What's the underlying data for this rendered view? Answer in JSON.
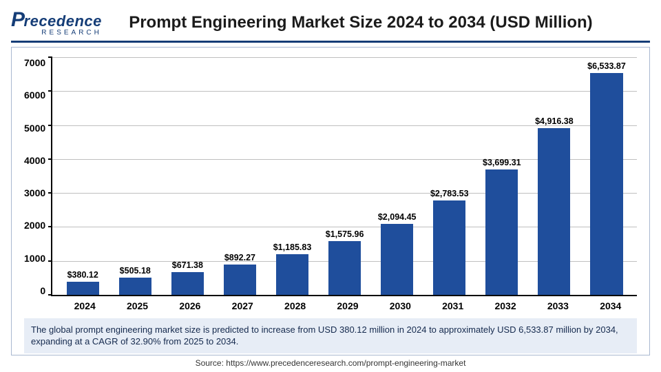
{
  "logo": {
    "text_left": "P",
    "text_mid": "recedence",
    "sub": "RESEARCH",
    "color": "#153d77"
  },
  "title": "Prompt Engineering Market Size 2024 to 2034 (USD Million)",
  "chart": {
    "type": "bar",
    "categories": [
      "2024",
      "2025",
      "2026",
      "2027",
      "2028",
      "2029",
      "2030",
      "2031",
      "2032",
      "2033",
      "2034"
    ],
    "values": [
      380.12,
      505.18,
      671.38,
      892.27,
      1185.83,
      1575.96,
      2094.45,
      2783.53,
      3699.31,
      4916.38,
      6533.87
    ],
    "value_labels": [
      "$380.12",
      "$505.18",
      "$671.38",
      "$892.27",
      "$1,185.83",
      "$1,575.96",
      "$2,094.45",
      "$2,783.53",
      "$3,699.31",
      "$4,916.38",
      "$6,533.87"
    ],
    "bar_color": "#1f4e9c",
    "ylim": [
      0,
      7000
    ],
    "ytick_step": 1000,
    "yticks": [
      "7000",
      "6000",
      "5000",
      "4000",
      "3000",
      "2000",
      "1000",
      "0"
    ],
    "grid_color": "#bfbfbf",
    "border_color": "#a8b8d0",
    "title_color": "#1b1b1b",
    "axis_fontsize": 14,
    "value_fontsize": 12,
    "background_color": "#ffffff",
    "bar_width": 0.62
  },
  "caption": {
    "text": "The global prompt engineering market size is predicted to increase from USD 380.12 million in 2024 to approximately USD 6,533.87 million by 2034, expanding at a CAGR of 32.90% from 2025 to 2034.",
    "background": "#e7edf6",
    "color": "#14294d"
  },
  "source": {
    "label": "Source: ",
    "url": "https://www.precedenceresearch.com/prompt-engineering-market",
    "color": "#333333"
  },
  "header_rule_color": "#153d77"
}
